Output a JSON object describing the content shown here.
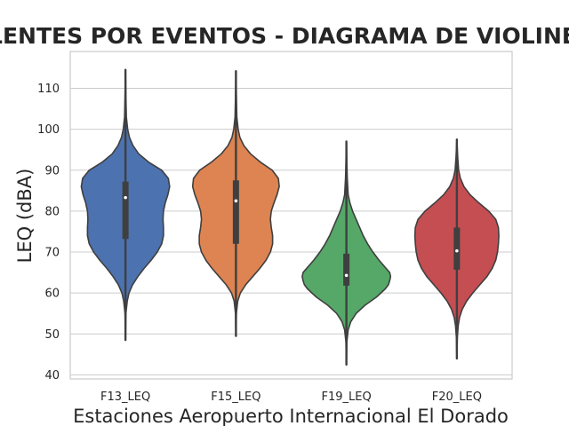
{
  "chart_data": {
    "type": "violin",
    "title": "LENTES POR EVENTOS - DIAGRAMA DE VIOLINES",
    "xlabel": "Estaciones Aeropuerto Internacional El Dorado",
    "ylabel": "LEQ (dBA)",
    "ylim": [
      39,
      119
    ],
    "yticks": [
      40,
      50,
      60,
      70,
      80,
      90,
      100,
      110
    ],
    "grid": true,
    "categories": [
      "F13_LEQ",
      "F15_LEQ",
      "F19_LEQ",
      "F20_LEQ"
    ],
    "colors": [
      "#4c72b0",
      "#dd8452",
      "#55a868",
      "#c44e52"
    ],
    "series": [
      {
        "category": "F13_LEQ",
        "min": 48.5,
        "q1": 73.2,
        "median": 83.3,
        "q3": 87.2,
        "max": 114.5,
        "density": [
          [
            48.5,
            0.0
          ],
          [
            55,
            0.01
          ],
          [
            58,
            0.04
          ],
          [
            60,
            0.08
          ],
          [
            62,
            0.16
          ],
          [
            64,
            0.28
          ],
          [
            66,
            0.42
          ],
          [
            68,
            0.58
          ],
          [
            70,
            0.72
          ],
          [
            72,
            0.82
          ],
          [
            74,
            0.86
          ],
          [
            76,
            0.86
          ],
          [
            78,
            0.85
          ],
          [
            80,
            0.86
          ],
          [
            82,
            0.9
          ],
          [
            84,
            0.96
          ],
          [
            86,
            1.0
          ],
          [
            88,
            0.97
          ],
          [
            90,
            0.82
          ],
          [
            92,
            0.52
          ],
          [
            94,
            0.3
          ],
          [
            96,
            0.17
          ],
          [
            98,
            0.09
          ],
          [
            100,
            0.05
          ],
          [
            103,
            0.02
          ],
          [
            108,
            0.01
          ],
          [
            114.5,
            0.0
          ]
        ]
      },
      {
        "category": "F15_LEQ",
        "min": 49.5,
        "q1": 72.0,
        "median": 82.5,
        "q3": 87.5,
        "max": 114.2,
        "density": [
          [
            49.5,
            0.0
          ],
          [
            55,
            0.01
          ],
          [
            58,
            0.04
          ],
          [
            60,
            0.1
          ],
          [
            62,
            0.22
          ],
          [
            64,
            0.38
          ],
          [
            66,
            0.54
          ],
          [
            68,
            0.68
          ],
          [
            70,
            0.78
          ],
          [
            72,
            0.83
          ],
          [
            74,
            0.83
          ],
          [
            76,
            0.8
          ],
          [
            78,
            0.78
          ],
          [
            80,
            0.8
          ],
          [
            82,
            0.86
          ],
          [
            84,
            0.93
          ],
          [
            86,
            0.98
          ],
          [
            88,
            0.96
          ],
          [
            90,
            0.82
          ],
          [
            92,
            0.55
          ],
          [
            94,
            0.33
          ],
          [
            96,
            0.18
          ],
          [
            98,
            0.09
          ],
          [
            100,
            0.05
          ],
          [
            103,
            0.02
          ],
          [
            108,
            0.01
          ],
          [
            114.2,
            0.0
          ]
        ]
      },
      {
        "category": "F19_LEQ",
        "min": 42.5,
        "q1": 61.8,
        "median": 64.3,
        "q3": 69.6,
        "max": 97.0,
        "density": [
          [
            42.5,
            0.0
          ],
          [
            48,
            0.01
          ],
          [
            51,
            0.04
          ],
          [
            53,
            0.1
          ],
          [
            55,
            0.22
          ],
          [
            57,
            0.42
          ],
          [
            59,
            0.68
          ],
          [
            61,
            0.88
          ],
          [
            62,
            0.95
          ],
          [
            63,
            0.98
          ],
          [
            64,
            1.0
          ],
          [
            65,
            0.98
          ],
          [
            66,
            0.9
          ],
          [
            68,
            0.74
          ],
          [
            70,
            0.6
          ],
          [
            72,
            0.48
          ],
          [
            74,
            0.38
          ],
          [
            76,
            0.3
          ],
          [
            78,
            0.22
          ],
          [
            80,
            0.14
          ],
          [
            82,
            0.08
          ],
          [
            84,
            0.04
          ],
          [
            88,
            0.02
          ],
          [
            92,
            0.01
          ],
          [
            97,
            0.0
          ]
        ]
      },
      {
        "category": "F20_LEQ",
        "min": 44.0,
        "q1": 65.7,
        "median": 70.3,
        "q3": 76.0,
        "max": 97.5,
        "density": [
          [
            44,
            0.0
          ],
          [
            49,
            0.01
          ],
          [
            52,
            0.03
          ],
          [
            54,
            0.06
          ],
          [
            56,
            0.12
          ],
          [
            58,
            0.22
          ],
          [
            60,
            0.36
          ],
          [
            62,
            0.52
          ],
          [
            64,
            0.68
          ],
          [
            66,
            0.8
          ],
          [
            68,
            0.88
          ],
          [
            70,
            0.92
          ],
          [
            72,
            0.94
          ],
          [
            74,
            0.95
          ],
          [
            76,
            0.94
          ],
          [
            78,
            0.88
          ],
          [
            80,
            0.72
          ],
          [
            82,
            0.5
          ],
          [
            84,
            0.3
          ],
          [
            86,
            0.16
          ],
          [
            88,
            0.08
          ],
          [
            90,
            0.04
          ],
          [
            93,
            0.02
          ],
          [
            97.5,
            0.0
          ]
        ]
      }
    ]
  }
}
